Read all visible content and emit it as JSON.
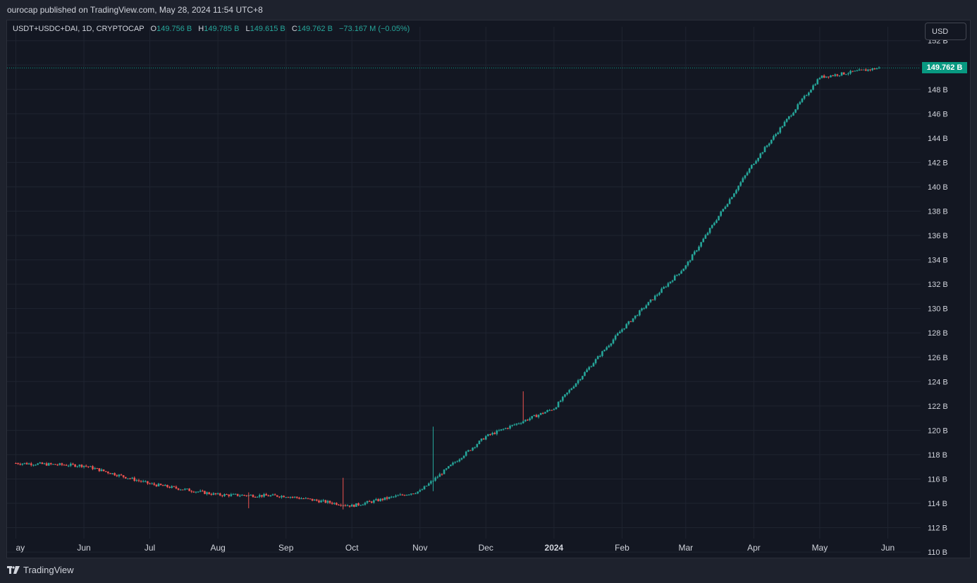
{
  "header": {
    "published_text": "ourocap published on TradingView.com, May 28, 2024 11:54 UTC+8"
  },
  "legend": {
    "symbol": "USDT+USDC+DAI, 1D, CRYPTOCAP",
    "open_label": "O",
    "open_value": "149.756 B",
    "high_label": "H",
    "high_value": "149.785 B",
    "low_label": "L",
    "low_value": "149.615 B",
    "close_label": "C",
    "close_value": "149.762 B",
    "change": "−73.167 M (−0.05%)"
  },
  "toolbar": {
    "currency": "USD"
  },
  "price_tag": {
    "value": "149.762 B"
  },
  "footer": {
    "brand": "TradingView"
  },
  "colors": {
    "up": "#26a69a",
    "down": "#ef5350",
    "background": "#131722",
    "grid": "#1f2430",
    "axis_text": "#d1d4dc",
    "tag": "#089981"
  },
  "chart_data": {
    "type": "candlestick",
    "unit": "B",
    "y_ticks": [
      "152 B",
      "150 B",
      "148 B",
      "146 B",
      "144 B",
      "142 B",
      "140 B",
      "138 B",
      "136 B",
      "134 B",
      "132 B",
      "130 B",
      "128 B",
      "126 B",
      "124 B",
      "122 B",
      "120 B",
      "118 B",
      "116 B",
      "114 B",
      "112 B",
      "110 B"
    ],
    "x_ticks": [
      "ay",
      "Jun",
      "Jul",
      "Aug",
      "Sep",
      "Oct",
      "Nov",
      "Dec",
      "2024",
      "Feb",
      "Mar",
      "Apr",
      "May",
      "Jun"
    ],
    "ylim": [
      109.6,
      153.2
    ],
    "last_price": 149.762,
    "series": [
      {
        "name": "USDT+USDC+DAI",
        "dates": [
          "2023-05-01",
          "2023-06-01",
          "2023-07-01",
          "2023-08-01",
          "2023-09-01",
          "2023-10-01",
          "2023-11-01",
          "2023-12-01",
          "2024-01-01",
          "2024-02-01",
          "2024-03-01",
          "2024-04-01",
          "2024-05-01",
          "2024-05-28"
        ],
        "close": [
          117.3,
          117.1,
          115.6,
          114.7,
          114.6,
          113.8,
          115.0,
          119.5,
          121.8,
          128.3,
          133.5,
          142.0,
          149.0,
          149.76
        ],
        "spikes": [
          {
            "date": "2023-08-15",
            "high": 114.9,
            "low": 113.6
          },
          {
            "date": "2023-09-27",
            "high": 116.1,
            "low": 113.5
          },
          {
            "date": "2023-11-07",
            "high": 120.3,
            "low": 115.0
          },
          {
            "date": "2023-12-18",
            "high": 123.2,
            "low": 120.8
          }
        ]
      }
    ]
  }
}
